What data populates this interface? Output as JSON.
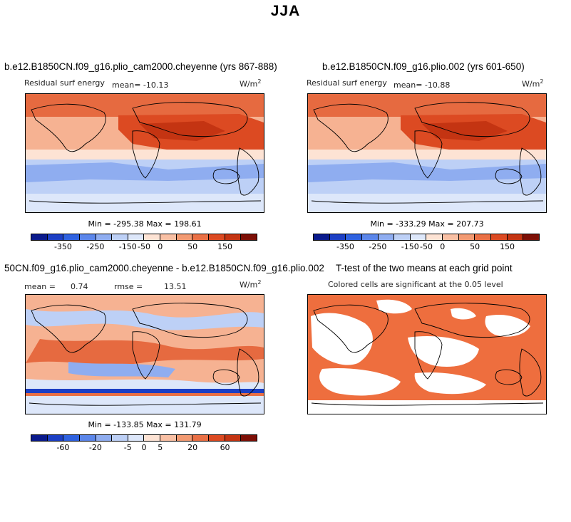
{
  "title": "JJA",
  "panels": [
    {
      "title": "b.e12.B1850CN.f09_g16.plio_cam2000.cheyenne (yrs 867-888)",
      "variable": "Residual surf energy",
      "mean_text": "mean= -10.13",
      "units": "W/m",
      "units_exp": "2",
      "minmax": "Min = -295.38 Max = 198.61"
    },
    {
      "title": "b.e12.B1850CN.f09_g16.plio.002 (yrs 601-650)",
      "variable": "Residual surf energy",
      "mean_text": "mean= -10.88",
      "units": "W/m",
      "units_exp": "2",
      "minmax": "Min = -333.29 Max = 207.73"
    },
    {
      "title": "50CN.f09_g16.plio_cam2000.cheyenne - b.e12.B1850CN.f09_g16.plio.002",
      "mean_label": "mean =",
      "mean_value": "0.74",
      "rmse_label": "rmse =",
      "rmse_value": "13.51",
      "units": "W/m",
      "units_exp": "2",
      "minmax": "Min = -133.85 Max = 131.79"
    },
    {
      "title": "T-test of the two means at each grid point",
      "subtitle": "Colored cells are significant at the 0.05 level"
    }
  ],
  "colorbars": [
    {
      "ticks": [
        "-350",
        "-250",
        "-150",
        "-50",
        "0",
        "50",
        "150"
      ],
      "colors": [
        "#0a1a8c",
        "#1c3fc4",
        "#2f62e0",
        "#5b86ea",
        "#8fadf0",
        "#bdd0f6",
        "#dde7fa",
        "#fde3d4",
        "#f9c0a4",
        "#f29a72",
        "#ea7045",
        "#dc4a22",
        "#c43412",
        "#7d0f06"
      ]
    },
    {
      "ticks": [
        "-350",
        "-250",
        "-150",
        "-50",
        "0",
        "50",
        "150"
      ],
      "colors": [
        "#0a1a8c",
        "#1c3fc4",
        "#2f62e0",
        "#5b86ea",
        "#8fadf0",
        "#bdd0f6",
        "#dde7fa",
        "#fde3d4",
        "#f9c0a4",
        "#f29a72",
        "#ea7045",
        "#dc4a22",
        "#c43412",
        "#7d0f06"
      ]
    },
    {
      "ticks": [
        "-60",
        "-20",
        "-5",
        "0",
        "5",
        "20",
        "60"
      ],
      "colors": [
        "#0a1a8c",
        "#1c3fc4",
        "#2f62e0",
        "#5b86ea",
        "#8fadf0",
        "#bdd0f6",
        "#dde7fa",
        "#fde3d4",
        "#f9c0a4",
        "#f29a72",
        "#ea7045",
        "#dc4a22",
        "#c43412",
        "#7d0f06"
      ]
    }
  ],
  "significance_color": "#ee6e3e",
  "land_outline_color": "#000000"
}
